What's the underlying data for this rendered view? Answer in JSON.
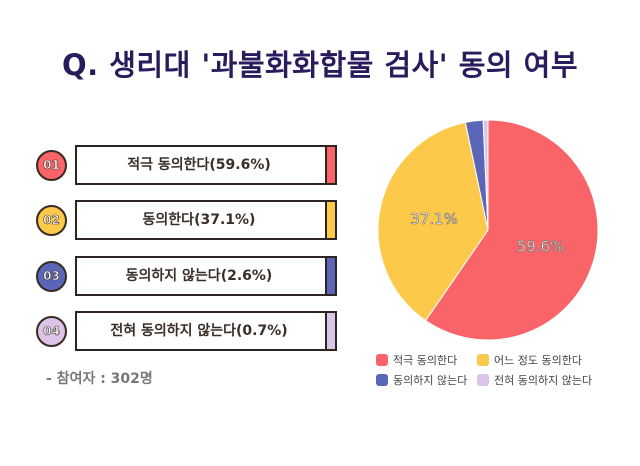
{
  "title": "Q. 생리대 '과불화화합물 검사' 동의 여부",
  "items": [
    {
      "num": "01",
      "label": "적극 동의한다(59.6%)",
      "color": "#f96468"
    },
    {
      "num": "02",
      "label": "동의한다(37.1%)",
      "color": "#fcc94a"
    },
    {
      "num": "03",
      "label": "동의하지 않는다(2.6%)",
      "color": "#5a67b8"
    },
    {
      "num": "04",
      "label": "전혀 동의하지 않는다(0.7%)",
      "color": "#dcc3e8"
    }
  ],
  "note": "- 참여자 : 302명",
  "chart_data": {
    "type": "pie",
    "slices": [
      {
        "name": "적극 동의한다",
        "value": 59.6,
        "label": "59.6%",
        "color": "#f96468"
      },
      {
        "name": "어느 정도 동의한다",
        "value": 37.1,
        "label": "37.1%",
        "color": "#fcc94a"
      },
      {
        "name": "동의하지 않는다",
        "value": 2.6,
        "label": "",
        "color": "#5a67b8"
      },
      {
        "name": "전혀 동의하지 않는다",
        "value": 0.7,
        "label": "",
        "color": "#dcc3e8"
      }
    ],
    "legend": "bottom"
  }
}
